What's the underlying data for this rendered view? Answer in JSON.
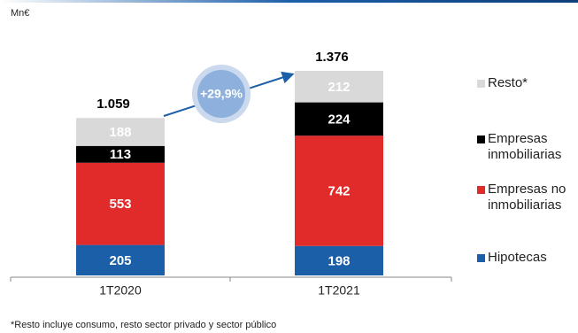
{
  "chart_data": {
    "type": "stacked_bar",
    "unit_label": "Mn€",
    "categories": [
      "1T2020",
      "1T2021"
    ],
    "series": [
      {
        "name": "Hipotecas",
        "color": "#1c5fa9",
        "values": [
          205,
          198
        ]
      },
      {
        "name": "Empresas no inmobiliarias",
        "color": "#e12a2a",
        "values": [
          553,
          742
        ]
      },
      {
        "name": "Empresas inmobiliarias",
        "color": "#000000",
        "values": [
          113,
          224
        ]
      },
      {
        "name": "Resto*",
        "color": "#d9d9d9",
        "values": [
          188,
          212
        ]
      }
    ],
    "totals": {
      "values": [
        1059,
        1376
      ],
      "value_labels": [
        "1.059",
        "1.376"
      ]
    },
    "annotation": "+29,9%",
    "footnote": "*Resto incluye consumo, resto sector privado y sector público"
  }
}
